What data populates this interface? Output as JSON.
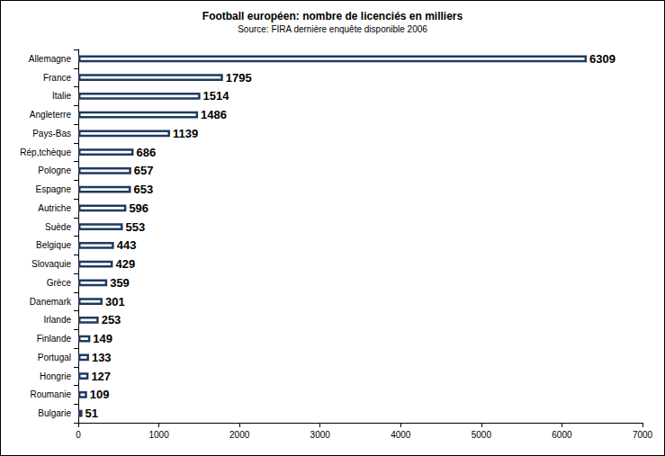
{
  "chart_data": {
    "type": "bar",
    "orientation": "horizontal",
    "title": "Football européen: nombre de licenciés en milliers",
    "subtitle": "Source: FIRA dernière enquête disponible 2006",
    "categories": [
      "Allemagne",
      "France",
      "Italie",
      "Angleterre",
      "Pays-Bas",
      "Rép,tchèque",
      "Pologne",
      "Espagne",
      "Autriche",
      "Suède",
      "Belgique",
      "Slovaquie",
      "Grèce",
      "Danemark",
      "Irlande",
      "Finlande",
      "Portugal",
      "Hongrie",
      "Roumanie",
      "Bulgarie"
    ],
    "values": [
      6309,
      1795,
      1514,
      1486,
      1139,
      686,
      657,
      653,
      596,
      553,
      443,
      429,
      359,
      301,
      253,
      149,
      133,
      127,
      109,
      51
    ],
    "color": "#1f3a60",
    "xlim": [
      0,
      7000
    ],
    "xticks": [
      0,
      1000,
      2000,
      3000,
      4000,
      5000,
      6000,
      7000
    ],
    "grid": false,
    "data_labels": true
  }
}
